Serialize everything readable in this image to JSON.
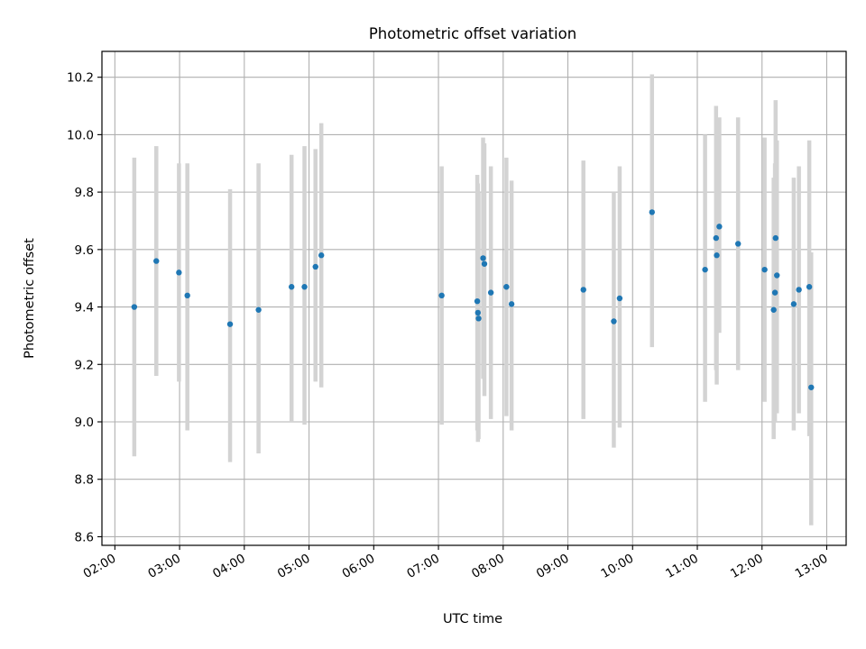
{
  "chart_data": {
    "type": "scatter",
    "title": "Photometric offset variation",
    "xlabel": "UTC time",
    "ylabel": "Photometric offset",
    "grid": true,
    "x_unit": "hours UTC",
    "xlim": [
      1.8,
      13.3
    ],
    "ylim": [
      8.57,
      10.29
    ],
    "x_ticks": [
      2,
      3,
      4,
      5,
      6,
      7,
      8,
      9,
      10,
      11,
      12,
      13
    ],
    "x_tick_labels": [
      "02:00",
      "03:00",
      "04:00",
      "05:00",
      "06:00",
      "07:00",
      "08:00",
      "09:00",
      "10:00",
      "11:00",
      "12:00",
      "13:00"
    ],
    "y_ticks": [
      8.6,
      8.8,
      9.0,
      9.2,
      9.4,
      9.6,
      9.8,
      10.0,
      10.2
    ],
    "y_tick_labels": [
      "8.6",
      "8.8",
      "9.0",
      "9.2",
      "9.4",
      "9.6",
      "9.8",
      "10.0",
      "10.2"
    ],
    "point_color": "#1f77b4",
    "errorbar_color": "#d3d3d3",
    "points": [
      {
        "x": 2.3,
        "y": 9.4,
        "lo": 8.88,
        "hi": 9.92
      },
      {
        "x": 2.64,
        "y": 9.56,
        "lo": 9.16,
        "hi": 9.96
      },
      {
        "x": 2.99,
        "y": 9.52,
        "lo": 9.14,
        "hi": 9.9
      },
      {
        "x": 3.12,
        "y": 9.44,
        "lo": 8.97,
        "hi": 9.9
      },
      {
        "x": 3.78,
        "y": 9.34,
        "lo": 8.86,
        "hi": 9.81
      },
      {
        "x": 4.22,
        "y": 9.39,
        "lo": 8.89,
        "hi": 9.9
      },
      {
        "x": 4.73,
        "y": 9.47,
        "lo": 9.0,
        "hi": 9.93
      },
      {
        "x": 4.93,
        "y": 9.47,
        "lo": 8.99,
        "hi": 9.96
      },
      {
        "x": 5.1,
        "y": 9.54,
        "lo": 9.14,
        "hi": 9.95
      },
      {
        "x": 5.19,
        "y": 9.58,
        "lo": 9.12,
        "hi": 10.04
      },
      {
        "x": 7.05,
        "y": 9.44,
        "lo": 8.99,
        "hi": 9.89
      },
      {
        "x": 7.6,
        "y": 9.42,
        "lo": 8.97,
        "hi": 9.86
      },
      {
        "x": 7.61,
        "y": 9.38,
        "lo": 8.93,
        "hi": 9.83
      },
      {
        "x": 7.62,
        "y": 9.36,
        "lo": 8.94,
        "hi": 9.8
      },
      {
        "x": 7.69,
        "y": 9.57,
        "lo": 9.15,
        "hi": 9.99
      },
      {
        "x": 7.71,
        "y": 9.55,
        "lo": 9.09,
        "hi": 9.97
      },
      {
        "x": 7.81,
        "y": 9.45,
        "lo": 9.01,
        "hi": 9.89
      },
      {
        "x": 8.05,
        "y": 9.47,
        "lo": 9.02,
        "hi": 9.92
      },
      {
        "x": 8.13,
        "y": 9.41,
        "lo": 8.97,
        "hi": 9.84
      },
      {
        "x": 9.24,
        "y": 9.46,
        "lo": 9.01,
        "hi": 9.91
      },
      {
        "x": 9.71,
        "y": 9.35,
        "lo": 8.91,
        "hi": 9.8
      },
      {
        "x": 9.8,
        "y": 9.43,
        "lo": 8.98,
        "hi": 9.89
      },
      {
        "x": 10.3,
        "y": 9.73,
        "lo": 9.26,
        "hi": 10.21
      },
      {
        "x": 11.12,
        "y": 9.53,
        "lo": 9.07,
        "hi": 10.0
      },
      {
        "x": 11.29,
        "y": 9.64,
        "lo": 9.18,
        "hi": 10.1
      },
      {
        "x": 11.3,
        "y": 9.58,
        "lo": 9.13,
        "hi": 10.03
      },
      {
        "x": 11.34,
        "y": 9.68,
        "lo": 9.31,
        "hi": 10.06
      },
      {
        "x": 11.63,
        "y": 9.62,
        "lo": 9.18,
        "hi": 10.06
      },
      {
        "x": 12.04,
        "y": 9.53,
        "lo": 9.07,
        "hi": 9.99
      },
      {
        "x": 12.18,
        "y": 9.39,
        "lo": 8.94,
        "hi": 9.85
      },
      {
        "x": 12.2,
        "y": 9.45,
        "lo": 9.0,
        "hi": 9.9
      },
      {
        "x": 12.21,
        "y": 9.64,
        "lo": 9.18,
        "hi": 10.12
      },
      {
        "x": 12.23,
        "y": 9.51,
        "lo": 9.03,
        "hi": 9.98
      },
      {
        "x": 12.49,
        "y": 9.41,
        "lo": 8.97,
        "hi": 9.85
      },
      {
        "x": 12.57,
        "y": 9.46,
        "lo": 9.03,
        "hi": 9.89
      },
      {
        "x": 12.73,
        "y": 9.47,
        "lo": 8.95,
        "hi": 9.98
      },
      {
        "x": 12.76,
        "y": 9.12,
        "lo": 8.64,
        "hi": 9.59
      }
    ]
  }
}
